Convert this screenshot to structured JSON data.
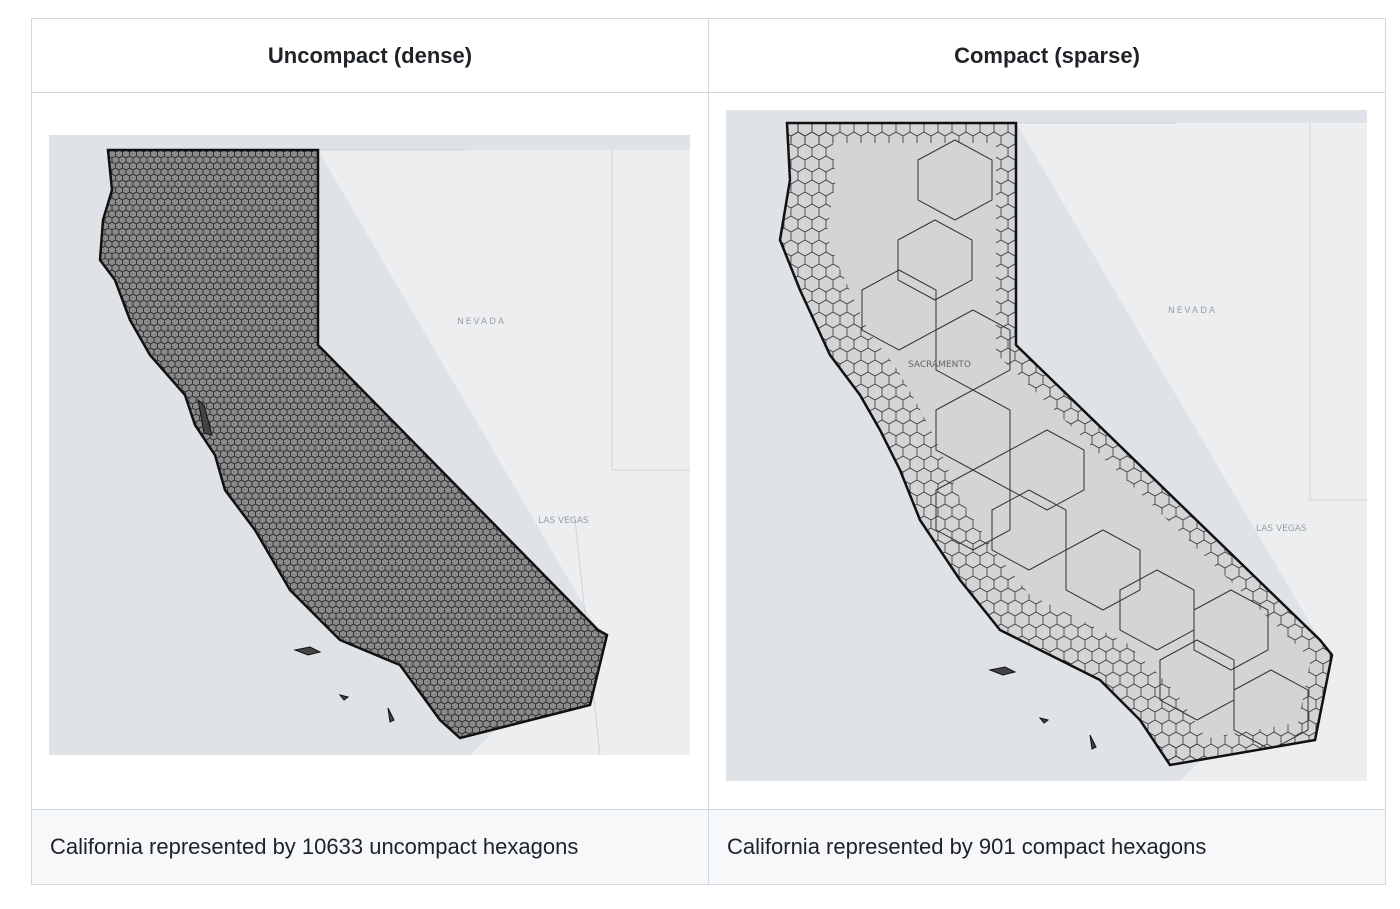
{
  "table": {
    "header": [
      "Uncompact (dense)",
      "Compact (sparse)"
    ],
    "rows": [
      [
        "California represented by 10633 uncompact hexagons",
        "California represented by 901 compact hexagons"
      ]
    ]
  },
  "maps": [
    {
      "labels": [
        "NEVADA",
        "LAS VEGAS"
      ]
    },
    {
      "labels": [
        "NEVADA",
        "SACRAMENTO",
        "LAS VEGAS"
      ]
    }
  ]
}
